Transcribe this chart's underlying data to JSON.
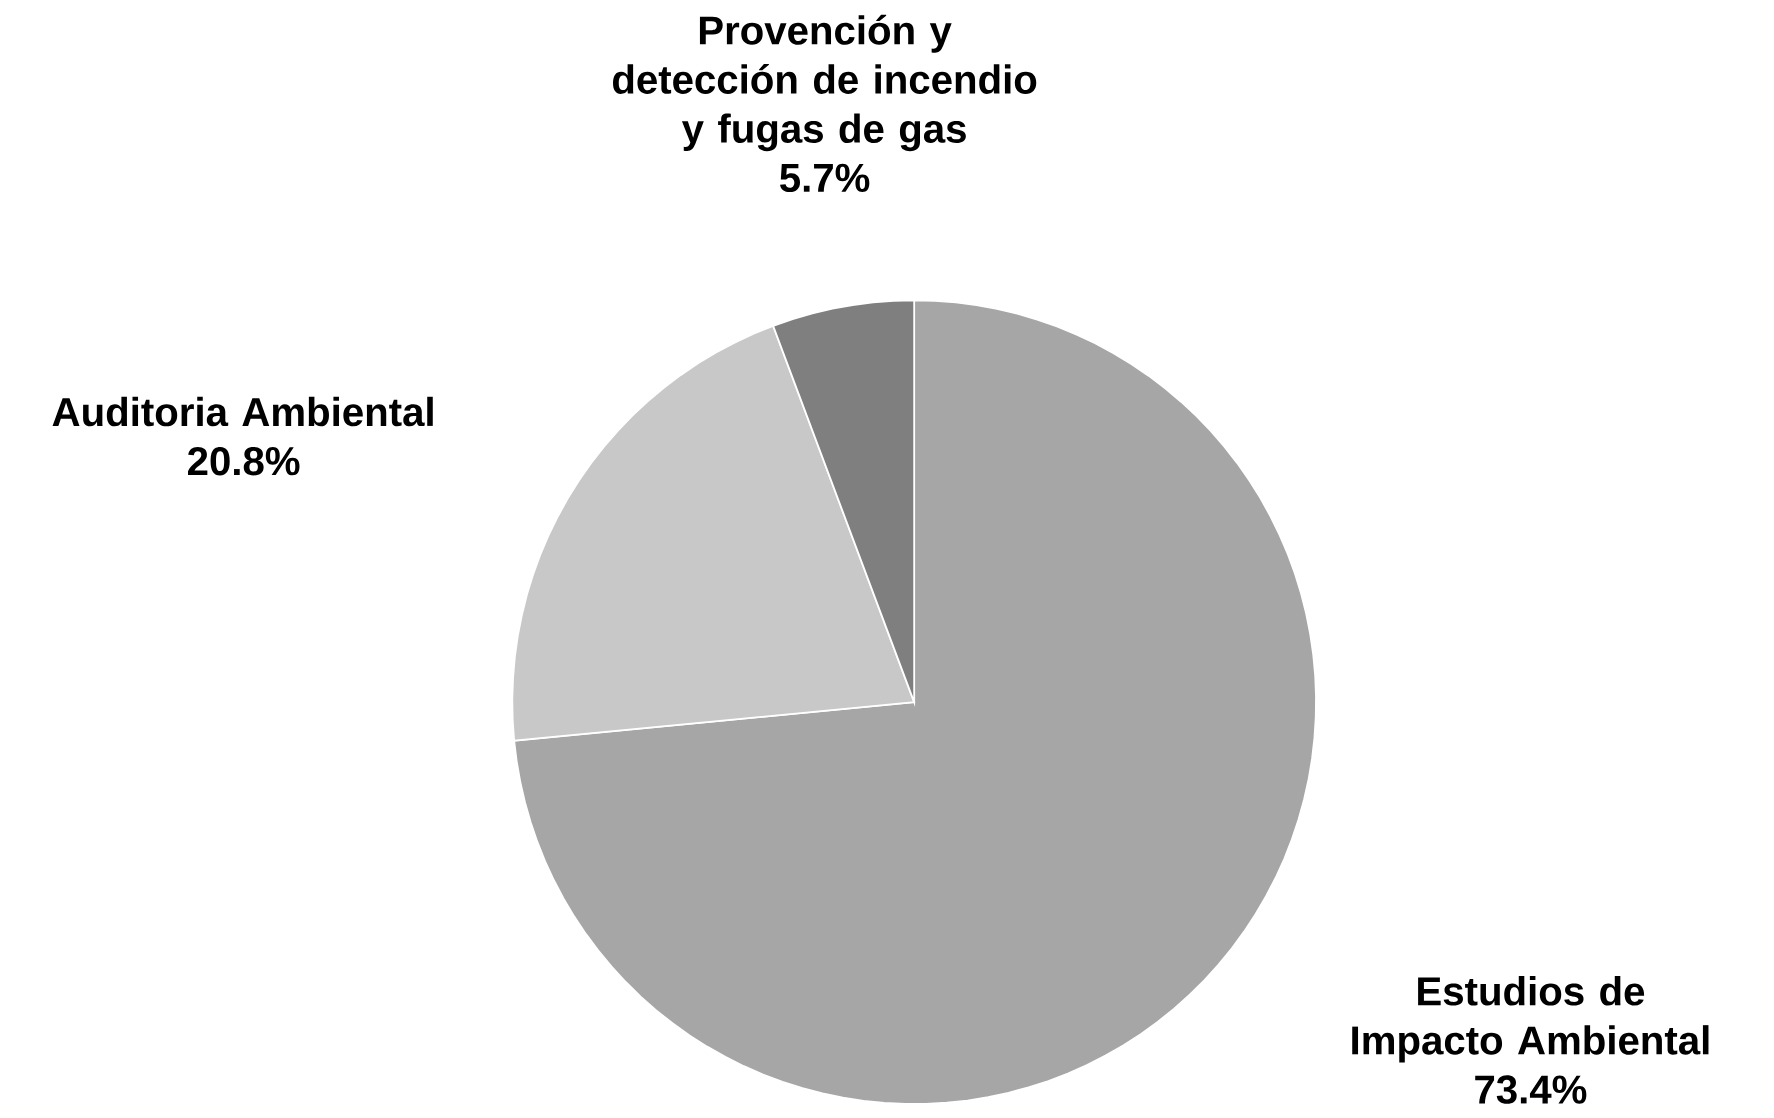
{
  "chart_data": {
    "type": "pie",
    "categories": [
      "Estudios de Impacto Ambiental",
      "Auditoria Ambiental",
      "Provención y detección de incendio y fugas de gas"
    ],
    "values": [
      73.4,
      20.8,
      5.7
    ],
    "value_labels": [
      "73.4%",
      "20.8%",
      "5.7%"
    ],
    "colors": [
      "#a6a6a6",
      "#c8c8c8",
      "#7f7f7f"
    ]
  }
}
